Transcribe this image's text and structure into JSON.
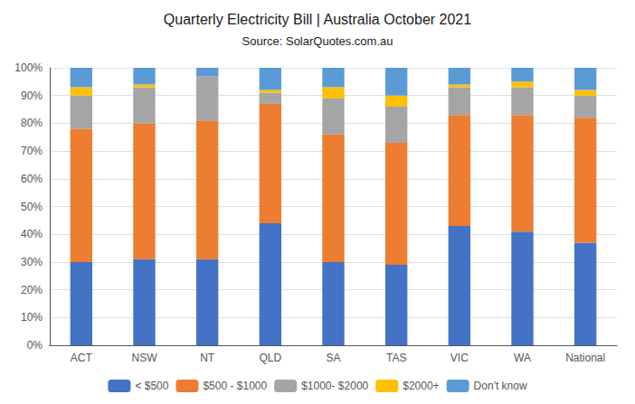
{
  "chart_data": {
    "type": "bar",
    "title": "Quarterly Electricity Bill | Australia October 2021",
    "subtitle": "Source: SolarQuotes.com.au",
    "categories": [
      "ACT",
      "NSW",
      "NT",
      "QLD",
      "SA",
      "TAS",
      "VIC",
      "WA",
      "National"
    ],
    "series": [
      {
        "name": "< $500",
        "color": "#4472c4",
        "values": [
          30,
          31,
          31,
          44,
          30,
          29,
          43,
          41,
          37
        ]
      },
      {
        "name": "$500 - $1000",
        "color": "#ed7d31",
        "values": [
          48,
          49,
          50,
          43,
          46,
          44,
          40,
          42,
          45
        ]
      },
      {
        "name": "$1000- $2000",
        "color": "#a5a5a5",
        "values": [
          12,
          13,
          16,
          4,
          13,
          13,
          10,
          10,
          8
        ]
      },
      {
        "name": "$2000+",
        "color": "#ffc000",
        "values": [
          3,
          1,
          0,
          1,
          4,
          4,
          1,
          2,
          2
        ]
      },
      {
        "name": "Don't know",
        "color": "#5b9bd5",
        "values": [
          7,
          6,
          3,
          8,
          7,
          10,
          6,
          5,
          8
        ]
      }
    ],
    "stacked": true,
    "ylim": [
      0,
      100
    ],
    "yticks": [
      {
        "value": 0,
        "label": "0%"
      },
      {
        "value": 10,
        "label": "10%"
      },
      {
        "value": 20,
        "label": "20%"
      },
      {
        "value": 30,
        "label": "30%"
      },
      {
        "value": 40,
        "label": "40%"
      },
      {
        "value": 50,
        "label": "50%"
      },
      {
        "value": 60,
        "label": "60%"
      },
      {
        "value": 70,
        "label": "70%"
      },
      {
        "value": 80,
        "label": "80%"
      },
      {
        "value": 90,
        "label": "90%"
      },
      {
        "value": 100,
        "label": "100%"
      }
    ],
    "grid": true,
    "legend": "bottom"
  }
}
